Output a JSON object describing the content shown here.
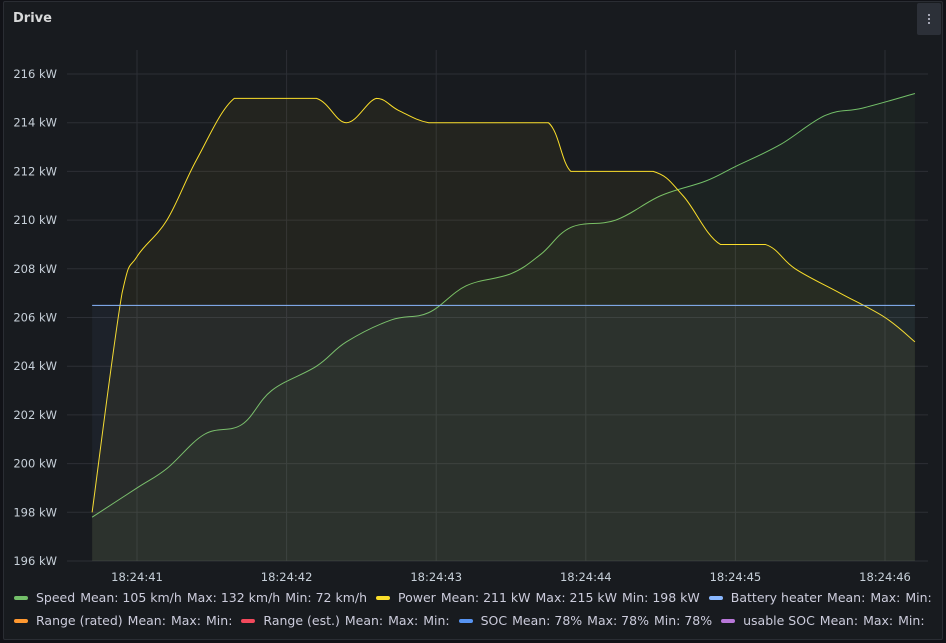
{
  "panel": {
    "title": "Drive"
  },
  "chart_data": {
    "type": "line",
    "title": "Drive",
    "ylabel": "",
    "ylim": [
      196,
      217
    ],
    "y_ticks": [
      "196 kW",
      "198 kW",
      "200 kW",
      "202 kW",
      "204 kW",
      "206 kW",
      "208 kW",
      "210 kW",
      "212 kW",
      "214 kW",
      "216 kW"
    ],
    "y_tick_values": [
      196,
      198,
      200,
      202,
      204,
      206,
      208,
      210,
      212,
      214,
      216
    ],
    "x_ticks": [
      "18:24:41",
      "18:24:42",
      "18:24:43",
      "18:24:44",
      "18:24:45",
      "18:24:46"
    ],
    "x_tick_values": [
      41,
      42,
      43,
      44,
      45,
      46
    ],
    "xlim": [
      40.35,
      46.3
    ],
    "grid": true,
    "legend_position": "bottom",
    "series": [
      {
        "name": "Speed",
        "color": "#73bf69",
        "x": [
          40.7,
          41.0,
          41.2,
          41.45,
          41.7,
          41.9,
          42.2,
          42.4,
          42.7,
          42.95,
          43.2,
          43.5,
          43.7,
          43.9,
          44.2,
          44.5,
          44.8,
          45.0,
          45.3,
          45.6,
          45.85,
          46.2
        ],
        "y": [
          197.8,
          199.0,
          199.8,
          201.2,
          201.6,
          203.0,
          204.0,
          205.0,
          205.9,
          206.2,
          207.3,
          207.8,
          208.6,
          209.7,
          210.0,
          211.0,
          211.6,
          212.2,
          213.1,
          214.3,
          214.6,
          215.2
        ]
      },
      {
        "name": "Power",
        "color": "#fade2a",
        "x": [
          40.7,
          40.9,
          41.0,
          41.2,
          41.4,
          41.65,
          41.9,
          42.2,
          42.4,
          42.6,
          42.75,
          42.95,
          43.2,
          43.5,
          43.75,
          43.9,
          44.1,
          44.45,
          44.65,
          44.9,
          45.2,
          45.4,
          45.7,
          46.0,
          46.2
        ],
        "y": [
          198.0,
          207.0,
          208.5,
          210.0,
          212.5,
          215.0,
          215.0,
          215.0,
          214.0,
          215.0,
          214.5,
          214.0,
          214.0,
          214.0,
          214.0,
          212.0,
          212.0,
          212.0,
          211.0,
          209.0,
          209.0,
          208.0,
          207.0,
          206.0,
          205.0
        ]
      },
      {
        "name": "Battery heater",
        "color": "#8ab8ff",
        "x": [
          40.7,
          46.2
        ],
        "y": [
          206.5,
          206.5
        ]
      }
    ]
  },
  "legend": {
    "rows": [
      [
        {
          "name": "Speed",
          "color": "#73bf69",
          "stats": [
            "Mean: 105 km/h",
            "Max: 132 km/h",
            "Min: 72 km/h"
          ]
        },
        {
          "name": "Power",
          "color": "#fade2a",
          "stats": [
            "Mean: 211 kW",
            "Max: 215 kW",
            "Min: 198 kW"
          ]
        },
        {
          "name": "Battery heater",
          "color": "#8ab8ff",
          "stats": [
            "Mean:",
            "Max:",
            "Min:"
          ]
        }
      ],
      [
        {
          "name": "Range (rated)",
          "color": "#ff9830",
          "stats": [
            "Mean:",
            "Max:",
            "Min:"
          ]
        },
        {
          "name": "Range (est.)",
          "color": "#f2495c",
          "stats": [
            "Mean:",
            "Max:",
            "Min:"
          ]
        },
        {
          "name": "SOC",
          "color": "#5794f2",
          "stats": [
            "Mean: 78%",
            "Max: 78%",
            "Min: 78%"
          ]
        },
        {
          "name": "usable SOC",
          "color": "#b877d9",
          "stats": [
            "Mean:",
            "Max:",
            "Min:"
          ]
        }
      ]
    ]
  }
}
